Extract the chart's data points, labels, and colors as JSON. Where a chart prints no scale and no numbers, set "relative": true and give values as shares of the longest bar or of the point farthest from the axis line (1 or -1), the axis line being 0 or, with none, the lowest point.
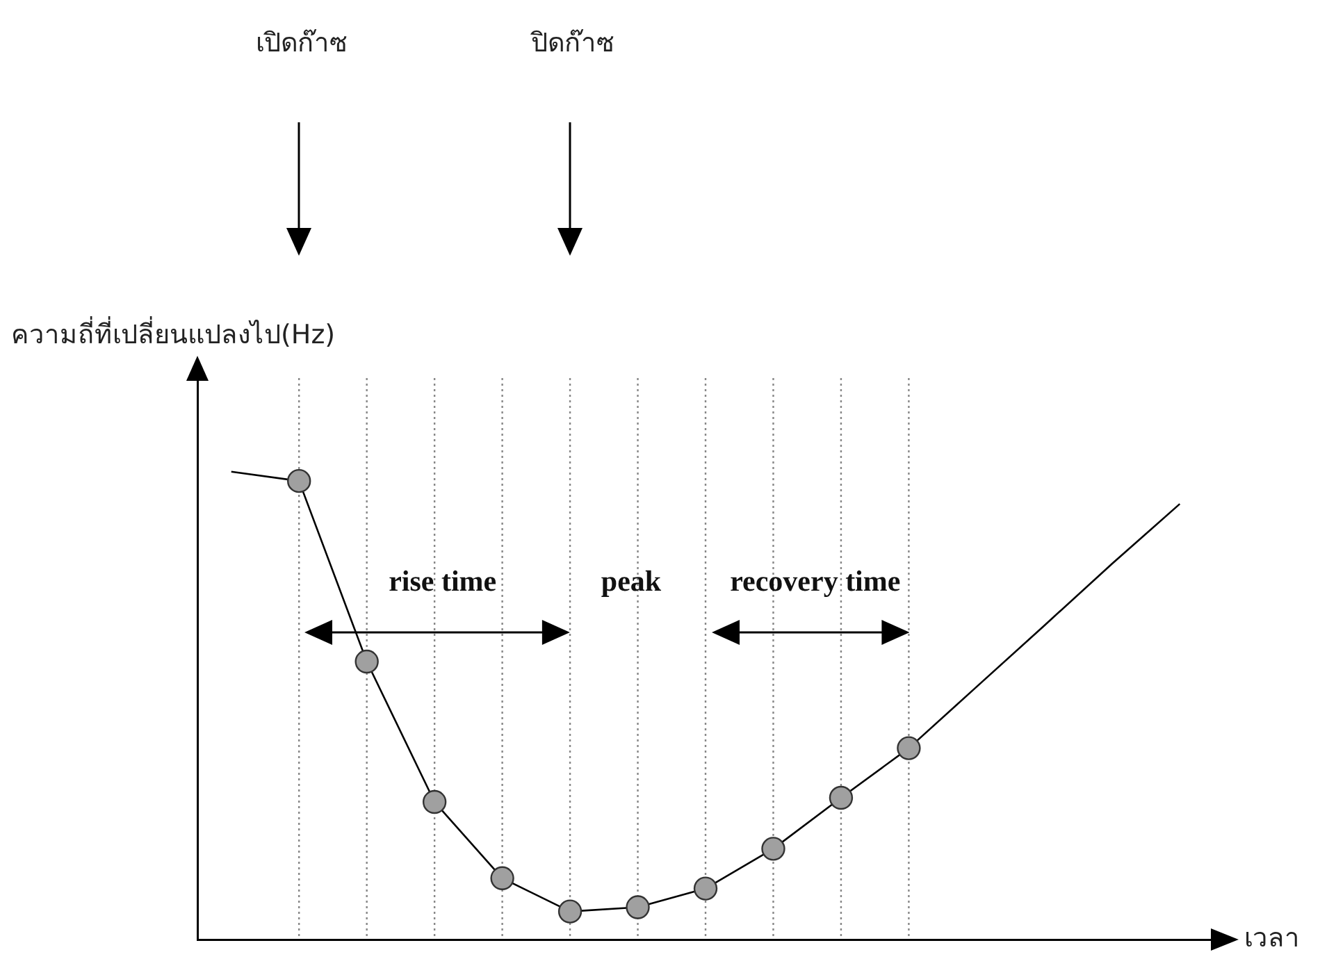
{
  "chart_data": {
    "type": "line",
    "relative": true,
    "xlabel": "เวลา",
    "ylabel": "ความถี่ที่เปลี่ยนแปลงไป(Hz)",
    "grid": "x",
    "categories": [
      null,
      null,
      null,
      null,
      null,
      null,
      null,
      null,
      null,
      null,
      null,
      null,
      null,
      null,
      null
    ],
    "series": [
      {
        "color": "#000000",
        "marker": "circle",
        "values": [
          1.0,
          0.98,
          0.594,
          0.294,
          0.131,
          0.06,
          0.069,
          0.109,
          0.194,
          0.303,
          0.409,
          0.54,
          0.671,
          0.803,
          0.931
        ]
      }
    ],
    "annotations": [
      "เปิดก๊าซ",
      "ปิดก๊าซ",
      "rise time",
      "peak",
      "recovery time"
    ]
  }
}
